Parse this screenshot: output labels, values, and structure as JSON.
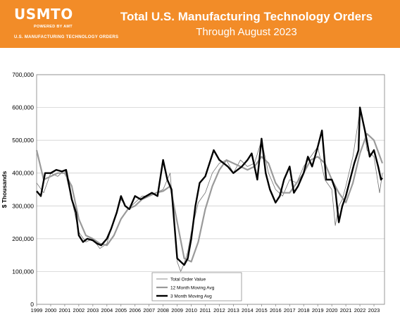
{
  "header": {
    "logo_text": "USMTO",
    "logo_sub": "POWERED BY AMT",
    "logo_tagline": "U.S. MANUFACTURING TECHNOLOGY ORDERS",
    "title": "Total U.S. Manufacturing Technology Orders",
    "subtitle": "Through August 2023",
    "banner_color": "#f28c28"
  },
  "chart_data": {
    "type": "line",
    "title": "Total U.S. Manufacturing Technology Orders",
    "subtitle": "Through August 2023",
    "ylabel": "$ Thousands",
    "xlabel": "",
    "ylim": [
      0,
      700000
    ],
    "yticks": [
      "0",
      "100,000",
      "200,000",
      "300,000",
      "400,000",
      "500,000",
      "600,000",
      "700,000"
    ],
    "xticks": [
      "1999",
      "2000",
      "2001",
      "2002",
      "2003",
      "2004",
      "2005",
      "2006",
      "2007",
      "2008",
      "2009",
      "2010",
      "2011",
      "2012",
      "2013",
      "2014",
      "2015",
      "2016",
      "2017",
      "2018",
      "2019",
      "2020",
      "2021",
      "2022",
      "2023"
    ],
    "grid": true,
    "legend_position": "bottom-center",
    "series": [
      {
        "name": "Total Order Value",
        "color": "#707070",
        "x": [
          1999.0,
          1999.5,
          2000.0,
          2000.5,
          2001.0,
          2001.5,
          2002.0,
          2002.5,
          2003.0,
          2003.5,
          2004.0,
          2004.5,
          2005.0,
          2005.5,
          2006.0,
          2006.5,
          2007.0,
          2007.5,
          2008.0,
          2008.5,
          2009.0,
          2009.25,
          2009.5,
          2009.75,
          2010.0,
          2010.5,
          2011.0,
          2011.5,
          2012.0,
          2012.5,
          2013.0,
          2013.5,
          2014.0,
          2014.5,
          2015.0,
          2015.5,
          2016.0,
          2016.5,
          2017.0,
          2017.5,
          2018.0,
          2018.5,
          2019.0,
          2019.5,
          2020.0,
          2020.25,
          2020.5,
          2020.75,
          2021.0,
          2021.5,
          2022.0,
          2022.25,
          2022.5,
          2023.0,
          2023.4,
          2023.6
        ],
        "values": [
          370000,
          340000,
          400000,
          390000,
          410000,
          320000,
          220000,
          190000,
          200000,
          170000,
          185000,
          260000,
          320000,
          290000,
          310000,
          330000,
          330000,
          340000,
          350000,
          400000,
          130000,
          100000,
          125000,
          160000,
          220000,
          310000,
          340000,
          400000,
          430000,
          440000,
          400000,
          440000,
          420000,
          430000,
          500000,
          400000,
          350000,
          330000,
          380000,
          370000,
          420000,
          450000,
          480000,
          380000,
          350000,
          240000,
          300000,
          320000,
          360000,
          450000,
          590000,
          550000,
          470000,
          450000,
          340000,
          400000
        ]
      },
      {
        "name": "12 Month Moving Avg",
        "color": "#9a9a9a",
        "x": [
          1999.0,
          1999.5,
          2000.0,
          2000.5,
          2001.0,
          2001.5,
          2002.0,
          2002.5,
          2003.0,
          2003.5,
          2004.0,
          2004.5,
          2005.0,
          2005.5,
          2006.0,
          2006.5,
          2007.0,
          2007.5,
          2008.0,
          2008.5,
          2009.0,
          2009.5,
          2010.0,
          2010.5,
          2011.0,
          2011.5,
          2012.0,
          2012.5,
          2013.0,
          2013.5,
          2014.0,
          2014.5,
          2015.0,
          2015.5,
          2016.0,
          2016.5,
          2017.0,
          2017.5,
          2018.0,
          2018.5,
          2019.0,
          2019.5,
          2020.0,
          2020.5,
          2021.0,
          2021.5,
          2022.0,
          2022.5,
          2023.0,
          2023.6
        ],
        "values": [
          470000,
          380000,
          390000,
          400000,
          400000,
          360000,
          260000,
          210000,
          200000,
          185000,
          180000,
          210000,
          260000,
          290000,
          300000,
          320000,
          330000,
          340000,
          345000,
          360000,
          250000,
          140000,
          130000,
          190000,
          290000,
          360000,
          410000,
          440000,
          430000,
          420000,
          410000,
          420000,
          450000,
          430000,
          370000,
          340000,
          340000,
          370000,
          400000,
          440000,
          450000,
          430000,
          380000,
          340000,
          310000,
          370000,
          460000,
          520000,
          500000,
          430000
        ]
      },
      {
        "name": "3 Month Moving Avg",
        "color": "#000000",
        "x": [
          1999.0,
          1999.3,
          1999.6,
          2000.0,
          2000.4,
          2000.8,
          2001.1,
          2001.5,
          2001.8,
          2002.0,
          2002.3,
          2002.6,
          2003.0,
          2003.3,
          2003.6,
          2004.0,
          2004.3,
          2004.7,
          2005.0,
          2005.3,
          2005.6,
          2006.0,
          2006.4,
          2006.8,
          2007.2,
          2007.6,
          2008.0,
          2008.3,
          2008.6,
          2009.0,
          2009.25,
          2009.5,
          2009.75,
          2010.0,
          2010.3,
          2010.6,
          2011.0,
          2011.3,
          2011.6,
          2012.0,
          2012.3,
          2012.6,
          2013.0,
          2013.3,
          2013.6,
          2014.0,
          2014.3,
          2014.7,
          2015.0,
          2015.3,
          2015.6,
          2016.0,
          2016.3,
          2016.6,
          2017.0,
          2017.3,
          2017.6,
          2018.0,
          2018.3,
          2018.6,
          2019.0,
          2019.3,
          2019.6,
          2020.0,
          2020.25,
          2020.5,
          2020.75,
          2021.0,
          2021.3,
          2021.6,
          2021.9,
          2022.0,
          2022.2,
          2022.4,
          2022.7,
          2023.0,
          2023.3,
          2023.5,
          2023.6
        ],
        "values": [
          345000,
          330000,
          400000,
          400000,
          410000,
          405000,
          410000,
          320000,
          280000,
          210000,
          190000,
          200000,
          195000,
          185000,
          180000,
          200000,
          230000,
          280000,
          330000,
          300000,
          290000,
          330000,
          320000,
          330000,
          340000,
          330000,
          440000,
          380000,
          350000,
          140000,
          130000,
          120000,
          140000,
          200000,
          300000,
          370000,
          390000,
          430000,
          470000,
          440000,
          430000,
          420000,
          400000,
          410000,
          420000,
          440000,
          460000,
          380000,
          505000,
          400000,
          350000,
          310000,
          330000,
          380000,
          420000,
          340000,
          360000,
          400000,
          450000,
          420000,
          480000,
          530000,
          380000,
          380000,
          350000,
          250000,
          300000,
          330000,
          380000,
          430000,
          470000,
          600000,
          560000,
          520000,
          450000,
          470000,
          420000,
          380000,
          385000
        ]
      }
    ]
  }
}
